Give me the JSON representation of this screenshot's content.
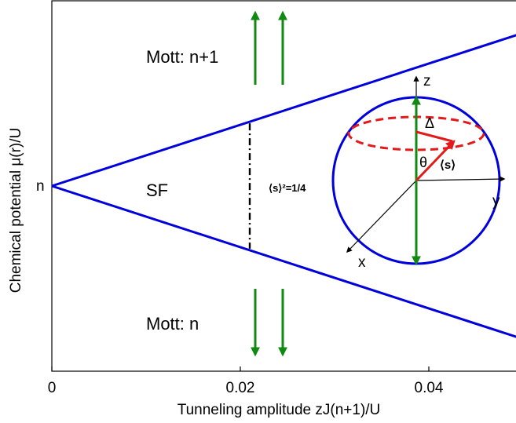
{
  "chart_data": {
    "type": "line",
    "title": "",
    "xlabel": "Tunneling amplitude  zJ(n+1)/U",
    "ylabel": "Chemical potential  μ(r)/U",
    "xlim": [
      0,
      0.05
    ],
    "x_ticks": [
      0,
      0.02,
      0.04
    ],
    "x_tick_labels": [
      "0",
      "0.02",
      "0.04"
    ],
    "y_tick_labels": [
      "n"
    ],
    "grid": false,
    "series": [
      {
        "name": "",
        "color": "#0000dd",
        "x": [
          0,
          0.05
        ],
        "y": [
          0,
          0.65
        ]
      },
      {
        "name": "",
        "color": "#0000dd",
        "x": [
          0,
          0.05
        ],
        "y": [
          0,
          -0.65
        ]
      }
    ],
    "boundary_x": 0.021,
    "region_labels": {
      "upper": "Mott: n+1",
      "middle": "SF",
      "lower": "Mott: n"
    },
    "inset": {
      "axis_labels": {
        "x": "x",
        "y": "y",
        "z": "z"
      },
      "theta": "θ",
      "delta": "Δ",
      "spin_label": "⟨s⟩",
      "constraint": "⟨s⟩²=1/4"
    },
    "colors": {
      "phase_boundary": "#0000dd",
      "arrows": "#118a11",
      "spin_vector": "#e31a1a",
      "dash_dot": "#000000"
    }
  }
}
